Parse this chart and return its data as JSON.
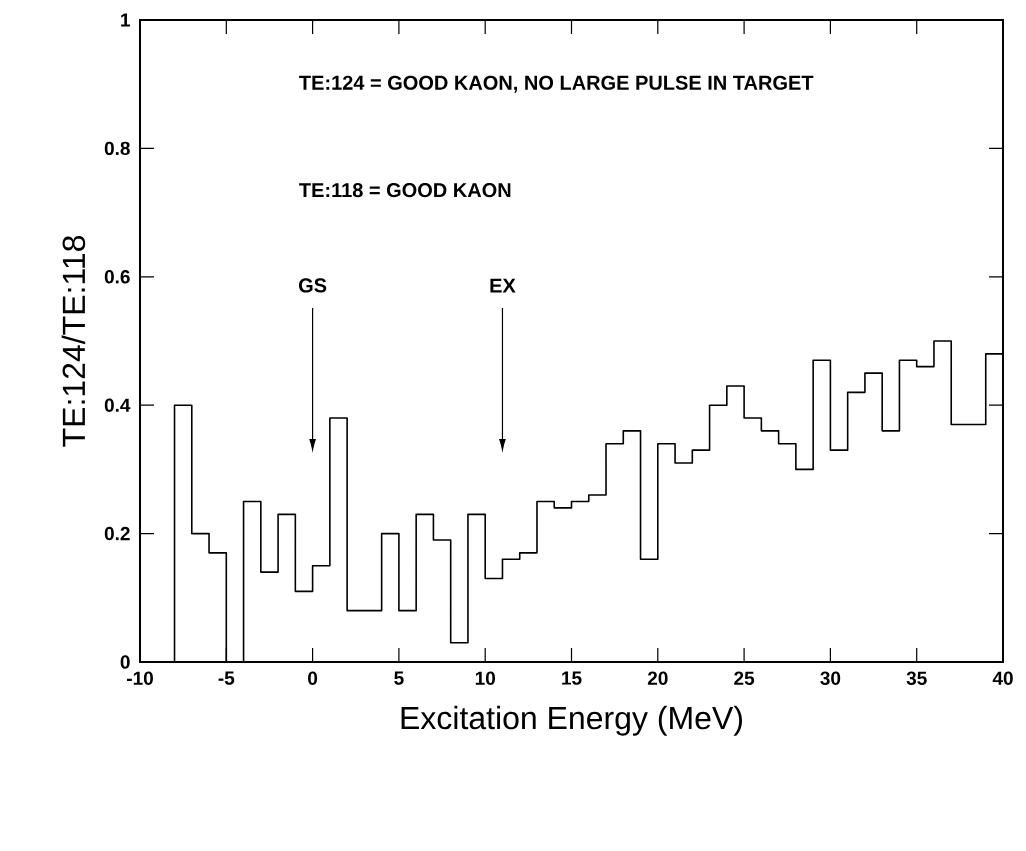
{
  "chart_data": {
    "type": "histogram",
    "xlabel": "Excitation Energy (MeV)",
    "ylabel": "TE:124/TE:118",
    "bins": [
      -8,
      -7,
      -6,
      -5,
      -4,
      -3,
      -2,
      -1,
      0,
      1,
      2,
      3,
      4,
      5,
      6,
      7,
      8,
      9,
      10,
      11,
      12,
      13,
      14,
      15,
      16,
      17,
      18,
      19,
      20,
      21,
      22,
      23,
      24,
      25,
      26,
      27,
      28,
      29,
      30,
      31,
      32,
      33,
      34,
      35,
      36,
      37,
      38,
      39,
      40
    ],
    "values": [
      0.4,
      0.2,
      0.17,
      0,
      0.25,
      0.14,
      0.23,
      0.11,
      0.15,
      0.38,
      0.08,
      0.08,
      0.2,
      0.08,
      0.23,
      0.19,
      0.03,
      0.23,
      0.13,
      0.16,
      0.17,
      0.25,
      0.24,
      0.25,
      0.26,
      0.34,
      0.36,
      0.16,
      0.34,
      0.31,
      0.33,
      0.4,
      0.43,
      0.38,
      0.36,
      0.34,
      0.3,
      0.47,
      0.33,
      0.42,
      0.45,
      0.36,
      0.47,
      0.46,
      0.5,
      0.37,
      0.37,
      0.48
    ],
    "color": "#000000",
    "xlim": [
      -10,
      40
    ],
    "ylim": [
      0,
      1
    ],
    "xticks": [
      -10,
      -5,
      0,
      5,
      10,
      15,
      20,
      25,
      30,
      35,
      40
    ],
    "yticks": [
      0,
      0.2,
      0.4,
      0.6,
      0.8,
      1
    ],
    "grid": false,
    "annotations": [
      "TE:124 = GOOD KAON, NO LARGE PULSE IN TARGET",
      "TE:118 = GOOD KAON",
      "GS",
      "EX"
    ]
  }
}
